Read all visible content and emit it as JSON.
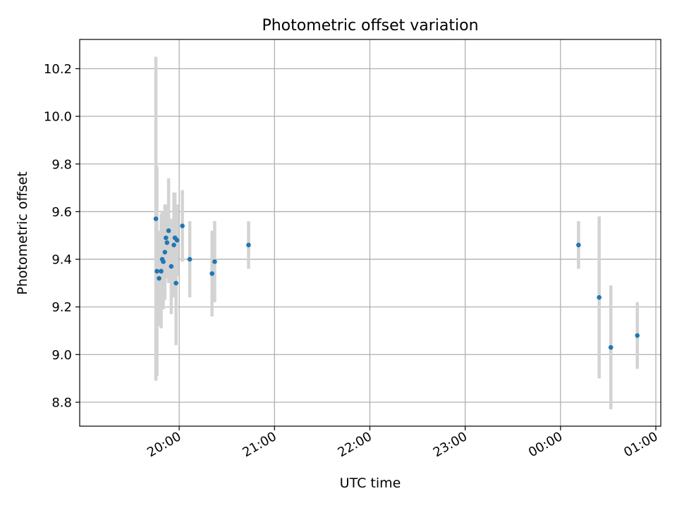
{
  "chart_data": {
    "type": "scatter",
    "title": "Photometric offset variation",
    "xlabel": "UTC time",
    "ylabel": "Photometric offset",
    "x_ticks": [
      "20:00",
      "21:00",
      "22:00",
      "23:00",
      "00:00",
      "01:00"
    ],
    "y_ticks": [
      "8.8",
      "9.0",
      "9.2",
      "9.4",
      "9.6",
      "9.8",
      "10.0",
      "10.2"
    ],
    "grid": true,
    "legend": "none",
    "point_color": "#1f77b4",
    "errorbar_color": "#d3d3d3",
    "series": [
      {
        "points": [
          {
            "t": "19:45:20",
            "y": 9.57,
            "err": 0.68
          },
          {
            "t": "19:46:00",
            "y": 9.35,
            "err": 0.44
          },
          {
            "t": "19:47:20",
            "y": 9.32,
            "err": 0.2
          },
          {
            "t": "19:48:40",
            "y": 9.35,
            "err": 0.24
          },
          {
            "t": "19:49:20",
            "y": 9.4,
            "err": 0.2
          },
          {
            "t": "19:50:00",
            "y": 9.39,
            "err": 0.2
          },
          {
            "t": "19:51:00",
            "y": 9.43,
            "err": 0.2
          },
          {
            "t": "19:51:40",
            "y": 9.49,
            "err": 0.14
          },
          {
            "t": "19:52:20",
            "y": 9.47,
            "err": 0.15
          },
          {
            "t": "19:53:20",
            "y": 9.52,
            "err": 0.22
          },
          {
            "t": "19:55:00",
            "y": 9.37,
            "err": 0.2
          },
          {
            "t": "19:56:40",
            "y": 9.46,
            "err": 0.22
          },
          {
            "t": "19:57:20",
            "y": 9.49,
            "err": 0.19
          },
          {
            "t": "19:58:00",
            "y": 9.3,
            "err": 0.26
          },
          {
            "t": "19:58:40",
            "y": 9.48,
            "err": 0.15
          },
          {
            "t": "20:02:00",
            "y": 9.54,
            "err": 0.15
          },
          {
            "t": "20:06:40",
            "y": 9.4,
            "err": 0.16
          },
          {
            "t": "20:20:40",
            "y": 9.34,
            "err": 0.18
          },
          {
            "t": "20:22:20",
            "y": 9.39,
            "err": 0.17
          },
          {
            "t": "20:43:40",
            "y": 9.46,
            "err": 0.1
          },
          {
            "t": "00:11:20",
            "y": 9.46,
            "err": 0.1
          },
          {
            "t": "00:24:20",
            "y": 9.24,
            "err": 0.34
          },
          {
            "t": "00:31:40",
            "y": 9.03,
            "err": 0.26
          },
          {
            "t": "00:48:20",
            "y": 9.08,
            "err": 0.14
          }
        ]
      }
    ]
  }
}
